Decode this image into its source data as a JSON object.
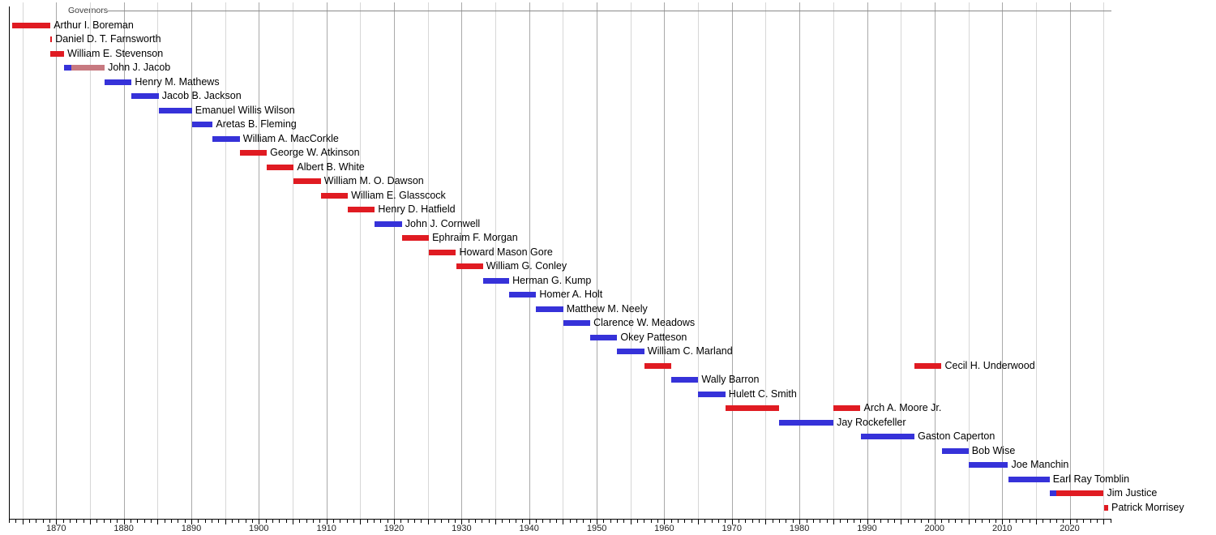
{
  "chart_data": {
    "type": "timeline",
    "title": "Governors",
    "x_axis": {
      "decade_labels": [
        1870,
        1880,
        1890,
        1900,
        1910,
        1920,
        1930,
        1940,
        1950,
        1960,
        1970,
        1980,
        1990,
        2000,
        2010,
        2020
      ],
      "minor_tick_years": {
        "start": 1863,
        "end": 2026,
        "step": 1
      },
      "grid_years": {
        "start": 1865,
        "end": 2025,
        "step": 5
      },
      "range_years": [
        1863.0,
        2026.2
      ]
    },
    "parties": {
      "republican": "#e01b22",
      "democrat": "#3632d9",
      "independent": "#c77980"
    },
    "governors": [
      {
        "name": "Arthur I. Boreman",
        "segments": [
          {
            "start": 1863.47,
            "end": 1869.15,
            "party": "republican"
          }
        ]
      },
      {
        "name": "Daniel D. T. Farnsworth",
        "segments": [
          {
            "start": 1869.15,
            "end": 1869.17,
            "party": "republican"
          }
        ]
      },
      {
        "name": "William E. Stevenson",
        "segments": [
          {
            "start": 1869.17,
            "end": 1871.17,
            "party": "republican"
          }
        ]
      },
      {
        "name": "John J. Jacob",
        "segments": [
          {
            "start": 1871.17,
            "end": 1872.2,
            "party": "democrat"
          },
          {
            "start": 1872.2,
            "end": 1877.17,
            "party": "independent"
          }
        ]
      },
      {
        "name": "Henry M. Mathews",
        "segments": [
          {
            "start": 1877.17,
            "end": 1881.17,
            "party": "democrat"
          }
        ]
      },
      {
        "name": "Jacob B. Jackson",
        "segments": [
          {
            "start": 1881.17,
            "end": 1885.17,
            "party": "democrat"
          }
        ]
      },
      {
        "name": "Emanuel Willis Wilson",
        "segments": [
          {
            "start": 1885.17,
            "end": 1890.1,
            "party": "democrat"
          }
        ]
      },
      {
        "name": "Aretas B. Fleming",
        "segments": [
          {
            "start": 1890.1,
            "end": 1893.17,
            "party": "democrat"
          }
        ]
      },
      {
        "name": "William A. MacCorkle",
        "segments": [
          {
            "start": 1893.17,
            "end": 1897.17,
            "party": "democrat"
          }
        ]
      },
      {
        "name": "George W. Atkinson",
        "segments": [
          {
            "start": 1897.17,
            "end": 1901.17,
            "party": "republican"
          }
        ]
      },
      {
        "name": "Albert B. White",
        "segments": [
          {
            "start": 1901.17,
            "end": 1905.17,
            "party": "republican"
          }
        ]
      },
      {
        "name": "William M. O. Dawson",
        "segments": [
          {
            "start": 1905.17,
            "end": 1909.17,
            "party": "republican"
          }
        ]
      },
      {
        "name": "William E. Glasscock",
        "segments": [
          {
            "start": 1909.17,
            "end": 1913.17,
            "party": "republican"
          }
        ]
      },
      {
        "name": "Henry D. Hatfield",
        "segments": [
          {
            "start": 1913.17,
            "end": 1917.17,
            "party": "republican"
          }
        ]
      },
      {
        "name": "John J. Cornwell",
        "segments": [
          {
            "start": 1917.17,
            "end": 1921.17,
            "party": "democrat"
          }
        ]
      },
      {
        "name": "Ephraim F. Morgan",
        "segments": [
          {
            "start": 1921.17,
            "end": 1925.17,
            "party": "republican"
          }
        ]
      },
      {
        "name": "Howard Mason Gore",
        "segments": [
          {
            "start": 1925.17,
            "end": 1929.17,
            "party": "republican"
          }
        ]
      },
      {
        "name": "William G. Conley",
        "segments": [
          {
            "start": 1929.17,
            "end": 1933.17,
            "party": "republican"
          }
        ]
      },
      {
        "name": "Herman G. Kump",
        "segments": [
          {
            "start": 1933.17,
            "end": 1937.04,
            "party": "democrat"
          }
        ]
      },
      {
        "name": "Homer A. Holt",
        "segments": [
          {
            "start": 1937.04,
            "end": 1941.04,
            "party": "democrat"
          }
        ]
      },
      {
        "name": "Matthew M. Neely",
        "segments": [
          {
            "start": 1941.04,
            "end": 1945.04,
            "party": "democrat"
          }
        ]
      },
      {
        "name": "Clarence W. Meadows",
        "segments": [
          {
            "start": 1945.04,
            "end": 1949.04,
            "party": "democrat"
          }
        ]
      },
      {
        "name": "Okey Patteson",
        "segments": [
          {
            "start": 1949.04,
            "end": 1953.04,
            "party": "democrat"
          }
        ]
      },
      {
        "name": "William C. Marland",
        "segments": [
          {
            "start": 1953.04,
            "end": 1957.04,
            "party": "democrat"
          }
        ]
      },
      {
        "name": "Cecil H. Underwood",
        "segments": [
          {
            "start": 1957.04,
            "end": 1961.04,
            "party": "republican"
          },
          {
            "start": 1997.04,
            "end": 2001.04,
            "party": "republican"
          }
        ]
      },
      {
        "name": "Wally Barron",
        "segments": [
          {
            "start": 1961.04,
            "end": 1965.04,
            "party": "democrat"
          }
        ]
      },
      {
        "name": "Hulett C. Smith",
        "segments": [
          {
            "start": 1965.04,
            "end": 1969.04,
            "party": "democrat"
          }
        ]
      },
      {
        "name": "Arch A. Moore Jr.",
        "segments": [
          {
            "start": 1969.04,
            "end": 1977.04,
            "party": "republican"
          },
          {
            "start": 1985.04,
            "end": 1989.04,
            "party": "republican"
          }
        ]
      },
      {
        "name": "Jay Rockefeller",
        "segments": [
          {
            "start": 1977.04,
            "end": 1985.04,
            "party": "democrat"
          }
        ]
      },
      {
        "name": "Gaston Caperton",
        "segments": [
          {
            "start": 1989.04,
            "end": 1997.04,
            "party": "democrat"
          }
        ]
      },
      {
        "name": "Bob Wise",
        "segments": [
          {
            "start": 2001.04,
            "end": 2005.04,
            "party": "democrat"
          }
        ]
      },
      {
        "name": "Joe Manchin",
        "segments": [
          {
            "start": 2005.04,
            "end": 2010.88,
            "party": "democrat"
          }
        ]
      },
      {
        "name": "Earl Ray Tomblin",
        "segments": [
          {
            "start": 2010.88,
            "end": 2017.04,
            "party": "democrat"
          }
        ]
      },
      {
        "name": "Jim Justice",
        "segments": [
          {
            "start": 2017.04,
            "end": 2018.0,
            "party": "democrat"
          },
          {
            "start": 2018.0,
            "end": 2025.04,
            "party": "republican"
          }
        ]
      },
      {
        "name": "Patrick Morrisey",
        "segments": [
          {
            "start": 2025.04,
            "end": 2025.7,
            "party": "republican"
          }
        ]
      }
    ]
  },
  "styles": {
    "background": "#ffffff",
    "grid_major": "#a9a9a9",
    "grid_minor": "#d7d7d7",
    "axis_color": "#000000",
    "top_rule_color": "#8a8a8a",
    "tick_label_color": "#222222",
    "name_color": "#000000",
    "title_color": "#3c3c3c"
  }
}
